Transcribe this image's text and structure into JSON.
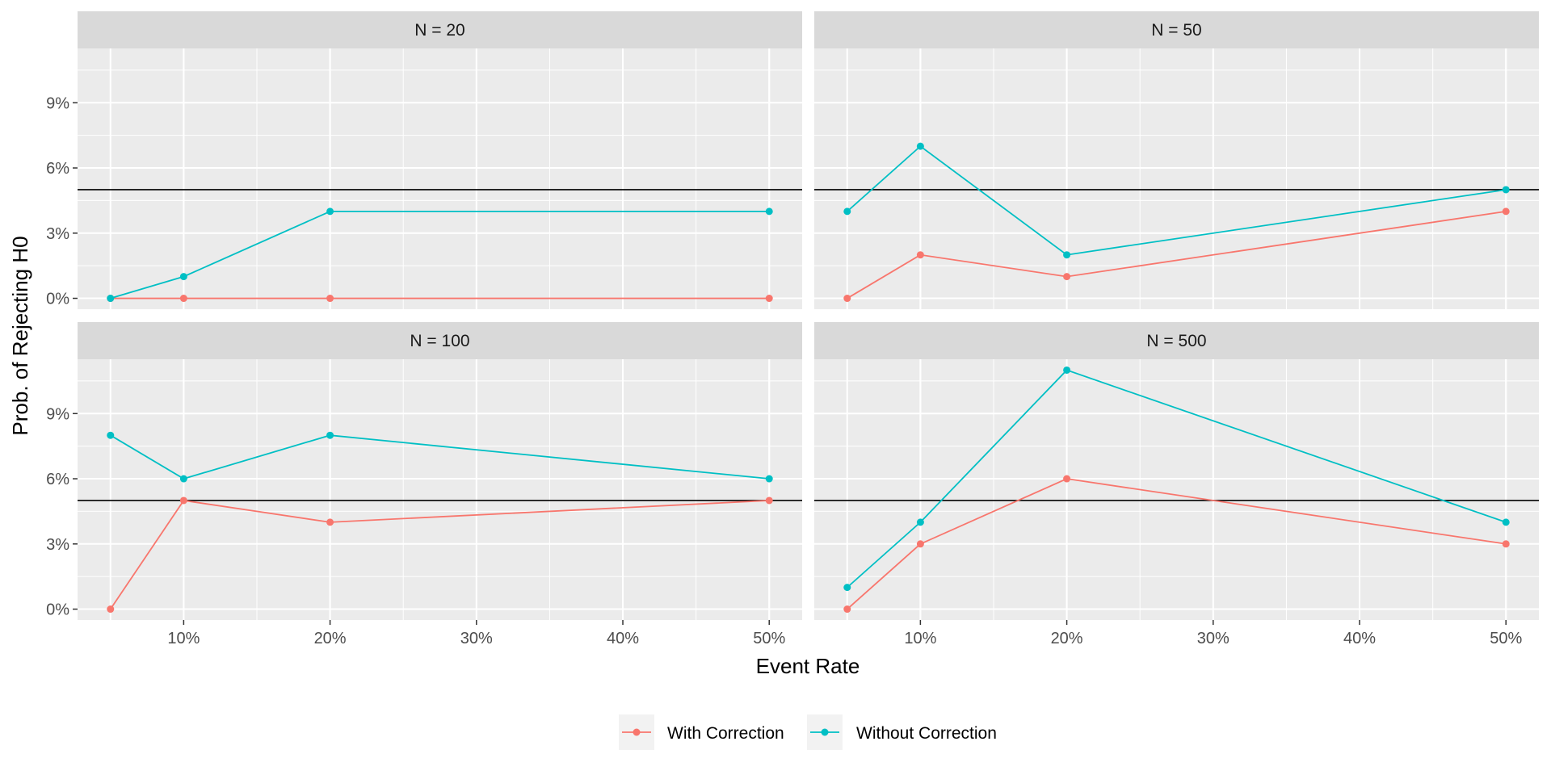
{
  "chart_data": {
    "type": "line",
    "xlabel": "Event Rate",
    "ylabel": "Prob. of Rejecting H0",
    "x": [
      0.05,
      0.1,
      0.2,
      0.5
    ],
    "xlim": [
      0.0275,
      0.5225
    ],
    "ylim": [
      -0.005,
      0.115
    ],
    "x_ticks": [
      0.1,
      0.2,
      0.3,
      0.4,
      0.5
    ],
    "x_tick_labels": [
      "10%",
      "20%",
      "30%",
      "40%",
      "50%"
    ],
    "y_ticks": [
      0,
      0.03,
      0.06,
      0.09
    ],
    "y_tick_labels": [
      "0%",
      "3%",
      "6%",
      "9%"
    ],
    "reference_line": 0.05,
    "grid": true,
    "legend_position": "bottom",
    "series_colors": {
      "With Correction": "#F8766D",
      "Without Correction": "#00BFC4"
    },
    "legend": [
      {
        "name": "With Correction",
        "color": "#F8766D"
      },
      {
        "name": "Without Correction",
        "color": "#00BFC4"
      }
    ],
    "panels": [
      {
        "title": "N = 20",
        "series": [
          {
            "name": "With Correction",
            "values": [
              0,
              0,
              0,
              0
            ]
          },
          {
            "name": "Without Correction",
            "values": [
              0,
              0.01,
              0.04,
              0.04
            ]
          }
        ]
      },
      {
        "title": "N = 50",
        "series": [
          {
            "name": "With Correction",
            "values": [
              0,
              0.02,
              0.01,
              0.04
            ]
          },
          {
            "name": "Without Correction",
            "values": [
              0.04,
              0.07,
              0.02,
              0.05
            ]
          }
        ]
      },
      {
        "title": "N = 100",
        "series": [
          {
            "name": "With Correction",
            "values": [
              0,
              0.05,
              0.04,
              0.05
            ]
          },
          {
            "name": "Without Correction",
            "values": [
              0.08,
              0.06,
              0.08,
              0.06
            ]
          }
        ]
      },
      {
        "title": "N = 500",
        "series": [
          {
            "name": "With Correction",
            "values": [
              0,
              0.03,
              0.06,
              0.03
            ]
          },
          {
            "name": "Without Correction",
            "values": [
              0.01,
              0.04,
              0.11,
              0.04
            ]
          }
        ]
      }
    ]
  }
}
